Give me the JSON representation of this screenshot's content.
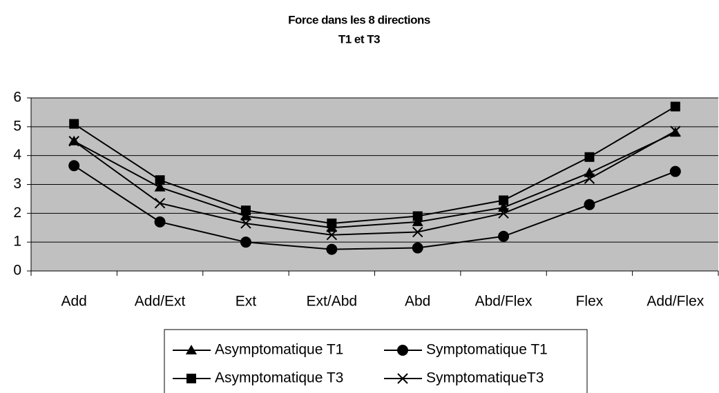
{
  "chart_data": {
    "type": "line",
    "title": "Force dans les 8 directions",
    "subtitle": "T1 et T3",
    "categories": [
      "Add",
      "Add/Ext",
      "Ext",
      "Ext/Abd",
      "Abd",
      "Abd/Flex",
      "Flex",
      "Add/Flex"
    ],
    "series": [
      {
        "name": "Asymptomatique T1",
        "color": "#000000",
        "marker": "triangle",
        "values": [
          4.5,
          2.9,
          1.9,
          1.5,
          1.7,
          2.2,
          3.4,
          4.8
        ]
      },
      {
        "name": "Symptomatique T1",
        "color": "#000000",
        "marker": "circle",
        "values": [
          3.65,
          1.7,
          1.0,
          0.75,
          0.8,
          1.2,
          2.3,
          3.45
        ]
      },
      {
        "name": "Asymptomatique T3",
        "color": "#000000",
        "marker": "square",
        "values": [
          5.1,
          3.15,
          2.1,
          1.65,
          1.9,
          2.45,
          3.95,
          5.7
        ]
      },
      {
        "name": "SymptomatiqueT3",
        "color": "#000000",
        "marker": "x",
        "values": [
          4.5,
          2.35,
          1.65,
          1.25,
          1.35,
          2.0,
          3.2,
          4.85
        ]
      }
    ],
    "ylim": [
      0,
      6
    ],
    "yticks": [
      0,
      1,
      2,
      3,
      4,
      5,
      6
    ],
    "grid": true,
    "plot_background": "#c0c0c0",
    "legend": "bottom"
  }
}
